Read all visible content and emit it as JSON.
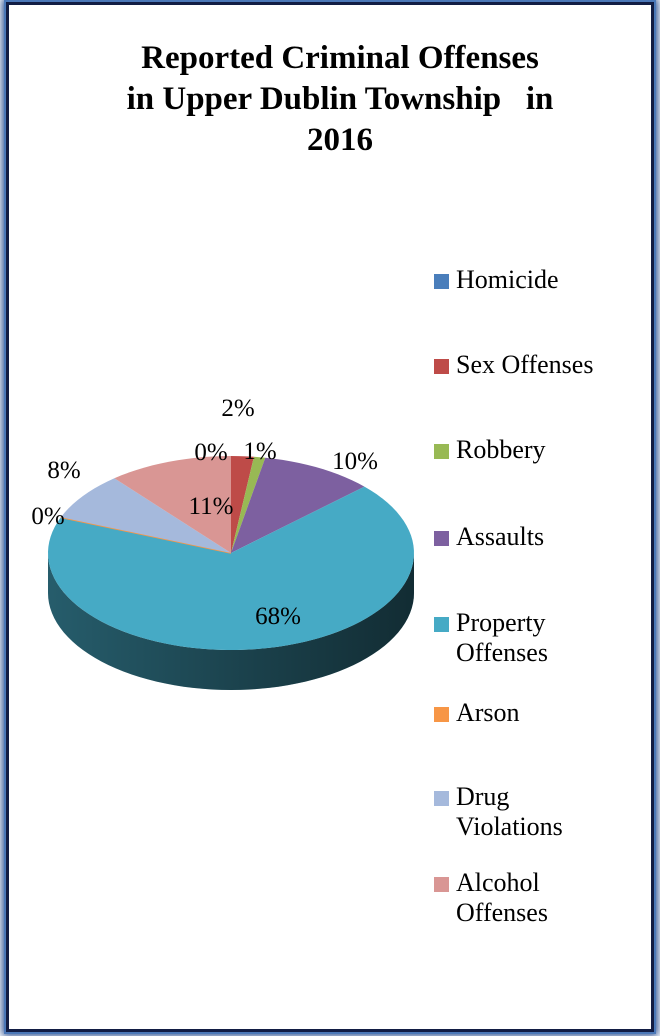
{
  "chart_data": {
    "type": "pie",
    "title": [
      "Reported Criminal Offenses",
      "in Upper Dublin Township   in",
      "2016"
    ],
    "categories": [
      "Homicide",
      "Sex Offenses",
      "Robbery",
      "Assaults",
      "Property Offenses",
      "Arson",
      "Drug Violations",
      "Alcohol Offenses"
    ],
    "values": [
      0,
      2,
      1,
      10,
      68,
      0,
      8,
      11
    ],
    "value_labels": [
      "0%",
      "2%",
      "1%",
      "10%",
      "68%",
      "0%",
      "8%",
      "11%"
    ],
    "legend_labels": [
      [
        "Homicide"
      ],
      [
        "Sex Offenses"
      ],
      [
        "Robbery"
      ],
      [
        "Assaults"
      ],
      [
        "Property",
        "Offenses"
      ],
      [
        "Arson"
      ],
      [
        "Drug",
        "Violations"
      ],
      [
        "Alcohol",
        "Offenses"
      ]
    ],
    "colors": [
      "#4a7ebb",
      "#be4b48",
      "#98b954",
      "#7d60a0",
      "#46aac5",
      "#f79646",
      "#a5b9dc",
      "#d99694"
    ],
    "legend_position": "right",
    "style": "3d"
  }
}
